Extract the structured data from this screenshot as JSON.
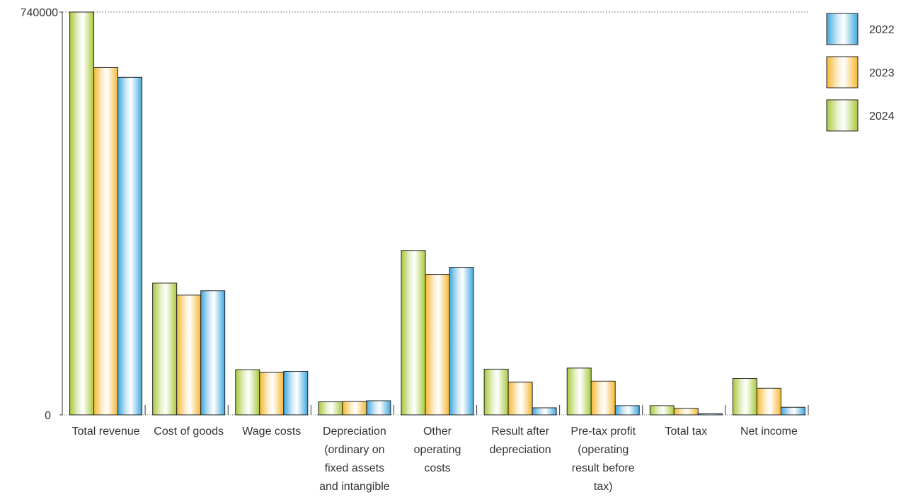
{
  "chart_data": {
    "type": "bar",
    "title": "",
    "xlabel": "",
    "ylabel": "",
    "ylim": [
      0,
      740000
    ],
    "y_ticks": [
      "0",
      "740000"
    ],
    "grid": "dotted line at top value only",
    "legend_position": "top-right",
    "categories": [
      [
        "Total revenue"
      ],
      [
        "Cost of goods"
      ],
      [
        "Wage costs"
      ],
      [
        "Depreciation",
        "(ordinary on",
        "fixed assets",
        "and intangible"
      ],
      [
        "Other",
        "operating",
        "costs"
      ],
      [
        "Result after",
        "depreciation"
      ],
      [
        "Pre-tax profit",
        "(operating",
        "result before",
        "tax)"
      ],
      [
        "Total tax"
      ],
      [
        "Net income"
      ]
    ],
    "series": [
      {
        "name": "2024",
        "color": "#a8c83a",
        "values": [
          740000,
          242000,
          83000,
          24000,
          302000,
          84000,
          86000,
          17000,
          67000
        ]
      },
      {
        "name": "2023",
        "color": "#f5b731",
        "values": [
          638000,
          220000,
          78000,
          24500,
          258000,
          60000,
          62000,
          12000,
          49000
        ]
      },
      {
        "name": "2022",
        "color": "#3fa6de",
        "values": [
          620000,
          228000,
          80000,
          26000,
          271000,
          13000,
          17000,
          2000,
          14000
        ]
      }
    ],
    "legend_order": [
      "2022",
      "2023",
      "2024"
    ]
  }
}
